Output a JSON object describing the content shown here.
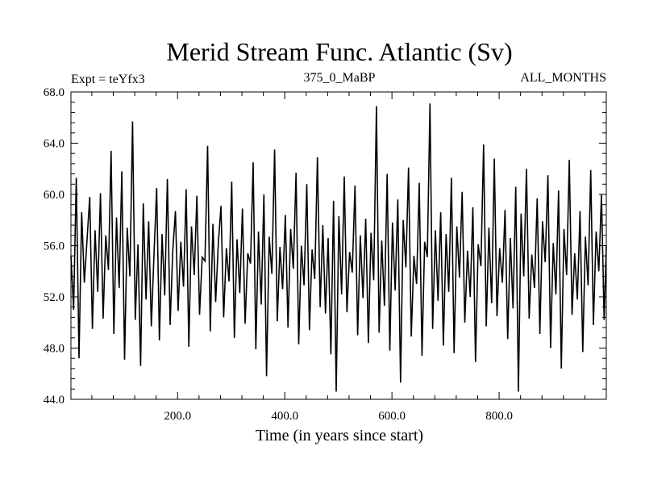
{
  "chart_data": {
    "type": "line",
    "title": "Merid Stream Func. Atlantic (Sv)",
    "subtitle_left": "Expt = teYfx3",
    "subtitle_center": "375_0_MaBP",
    "subtitle_right": "ALL_MONTHS",
    "xlabel": "Time (in years since start)",
    "ylabel": "",
    "xlim": [
      1,
      1000
    ],
    "ylim": [
      44.0,
      68.0
    ],
    "x_ticks": [
      200.0,
      400.0,
      600.0,
      800.0
    ],
    "x_tick_labels": [
      "200.0",
      "400.0",
      "600.0",
      "800.0"
    ],
    "y_ticks": [
      44.0,
      48.0,
      52.0,
      56.0,
      60.0,
      64.0,
      68.0
    ],
    "y_tick_labels": [
      "44.0",
      "48.0",
      "52.0",
      "56.0",
      "60.0",
      "64.0",
      "68.0"
    ],
    "grid": false,
    "line_color": "#000000",
    "series": [
      {
        "x": [
          1,
          6,
          11,
          16,
          21,
          26,
          31,
          36,
          41,
          46,
          51,
          56,
          61,
          66,
          71,
          76,
          81,
          86,
          91,
          96,
          101,
          106,
          111,
          116,
          121,
          126,
          131,
          136,
          141,
          146,
          151,
          156,
          161,
          166,
          171,
          176,
          181,
          186,
          191,
          196,
          201,
          206,
          211,
          216,
          221,
          226,
          231,
          236,
          241,
          246,
          251,
          256,
          261,
          266,
          271,
          276,
          281,
          286,
          291,
          296,
          301,
          306,
          311,
          316,
          321,
          326,
          331,
          336,
          341,
          346,
          351,
          356,
          361,
          366,
          371,
          376,
          381,
          386,
          391,
          396,
          401,
          406,
          411,
          416,
          421,
          426,
          431,
          436,
          441,
          446,
          451,
          456,
          461,
          466,
          471,
          476,
          481,
          486,
          491,
          496,
          501,
          506,
          511,
          516,
          521,
          526,
          531,
          536,
          541,
          546,
          551,
          556,
          561,
          566,
          571,
          576,
          581,
          586,
          591,
          596,
          601,
          606,
          611,
          616,
          621,
          626,
          631,
          636,
          641,
          646,
          651,
          656,
          661,
          666,
          671,
          676,
          681,
          686,
          691,
          696,
          701,
          706,
          711,
          716,
          721,
          726,
          731,
          736,
          741,
          746,
          751,
          756,
          761,
          766,
          771,
          776,
          781,
          786,
          791,
          796,
          801,
          806,
          811,
          816,
          821,
          826,
          831,
          836,
          841,
          846,
          851,
          856,
          861,
          866,
          871,
          876,
          881,
          886,
          891,
          896,
          901,
          906,
          911,
          916,
          921,
          926,
          931,
          936,
          941,
          946,
          951,
          956,
          961,
          966,
          971,
          976,
          981,
          986,
          991,
          996,
          1000
        ],
        "values": [
          55.2,
          51.0,
          61.3,
          47.2,
          58.6,
          53.1,
          56.4,
          59.8,
          49.5,
          57.2,
          52.4,
          60.1,
          50.3,
          56.8,
          54.1,
          63.4,
          49.1,
          58.2,
          52.7,
          61.8,
          47.1,
          57.4,
          53.6,
          65.7,
          50.2,
          56.1,
          46.6,
          59.3,
          51.8,
          57.9,
          49.7,
          55.3,
          60.5,
          48.6,
          56.9,
          52.1,
          61.2,
          49.8,
          55.6,
          58.7,
          50.9,
          56.3,
          52.8,
          60.4,
          48.1,
          57.5,
          53.7,
          59.9,
          50.6,
          55.1,
          54.8,
          63.8,
          49.3,
          57.7,
          51.6,
          56.2,
          59.1,
          50.4,
          55.8,
          53.2,
          61.0,
          48.8,
          56.5,
          52.3,
          58.9,
          49.9,
          55.4,
          54.6,
          62.5,
          47.9,
          57.1,
          51.4,
          60.0,
          45.8,
          56.7,
          53.8,
          63.5,
          50.1,
          55.9,
          52.6,
          58.4,
          49.6,
          57.3,
          54.2,
          61.7,
          48.3,
          56.0,
          52.9,
          60.8,
          49.4,
          55.7,
          53.4,
          62.9,
          51.2,
          57.6,
          50.7,
          56.6,
          47.5,
          59.5,
          44.6,
          58.3,
          52.2,
          61.4,
          50.8,
          55.5,
          53.9,
          60.7,
          49.0,
          56.8,
          51.9,
          58.1,
          48.4,
          57.0,
          53.3,
          66.9,
          49.2,
          56.4,
          51.3,
          61.6,
          47.8,
          57.8,
          52.5,
          59.6,
          45.3,
          58.0,
          54.3,
          62.1,
          48.9,
          55.2,
          53.0,
          60.9,
          47.4,
          56.3,
          55.1,
          67.1,
          49.5,
          57.2,
          51.7,
          58.6,
          48.2,
          56.9,
          52.4,
          61.3,
          47.6,
          57.5,
          53.5,
          60.2,
          50.0,
          55.6,
          52.0,
          59.0,
          46.9,
          56.1,
          54.4,
          63.9,
          49.7,
          57.4,
          51.5,
          62.8,
          50.5,
          55.8,
          53.1,
          58.8,
          48.7,
          56.6,
          51.1,
          60.6,
          44.6,
          58.5,
          53.6,
          62.0,
          50.3,
          55.3,
          52.7,
          59.7,
          49.1,
          57.9,
          54.7,
          61.5,
          48.0,
          56.2,
          52.2,
          60.3,
          46.4,
          57.3,
          53.7,
          62.7,
          50.6,
          55.4,
          51.8,
          58.7,
          47.7,
          56.7,
          52.9,
          61.9,
          49.8,
          57.1,
          54.0,
          60.0,
          50.2,
          56.0
        ]
      }
    ]
  }
}
